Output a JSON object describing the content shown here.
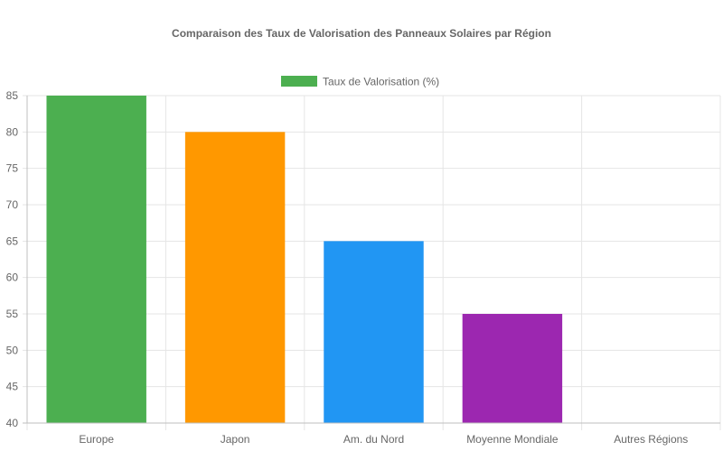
{
  "chart_data": {
    "type": "bar",
    "title": "Comparaison des Taux de Valorisation des Panneaux Solaires par Région",
    "categories": [
      "Europe",
      "Japon",
      "Am. du Nord",
      "Moyenne Mondiale",
      "Autres Régions"
    ],
    "series": [
      {
        "name": "Taux de Valorisation (%)",
        "values": [
          85,
          80,
          65,
          55,
          40
        ],
        "colors": [
          "#4CAF50",
          "#FF9800",
          "#2196F3",
          "#9C27B0",
          "#F44336"
        ]
      }
    ],
    "legend_color": "#4CAF50",
    "ylim": [
      40,
      85
    ],
    "yticks": [
      40,
      45,
      50,
      55,
      60,
      65,
      70,
      75,
      80,
      85
    ],
    "grid": true,
    "legend_position": "top"
  }
}
